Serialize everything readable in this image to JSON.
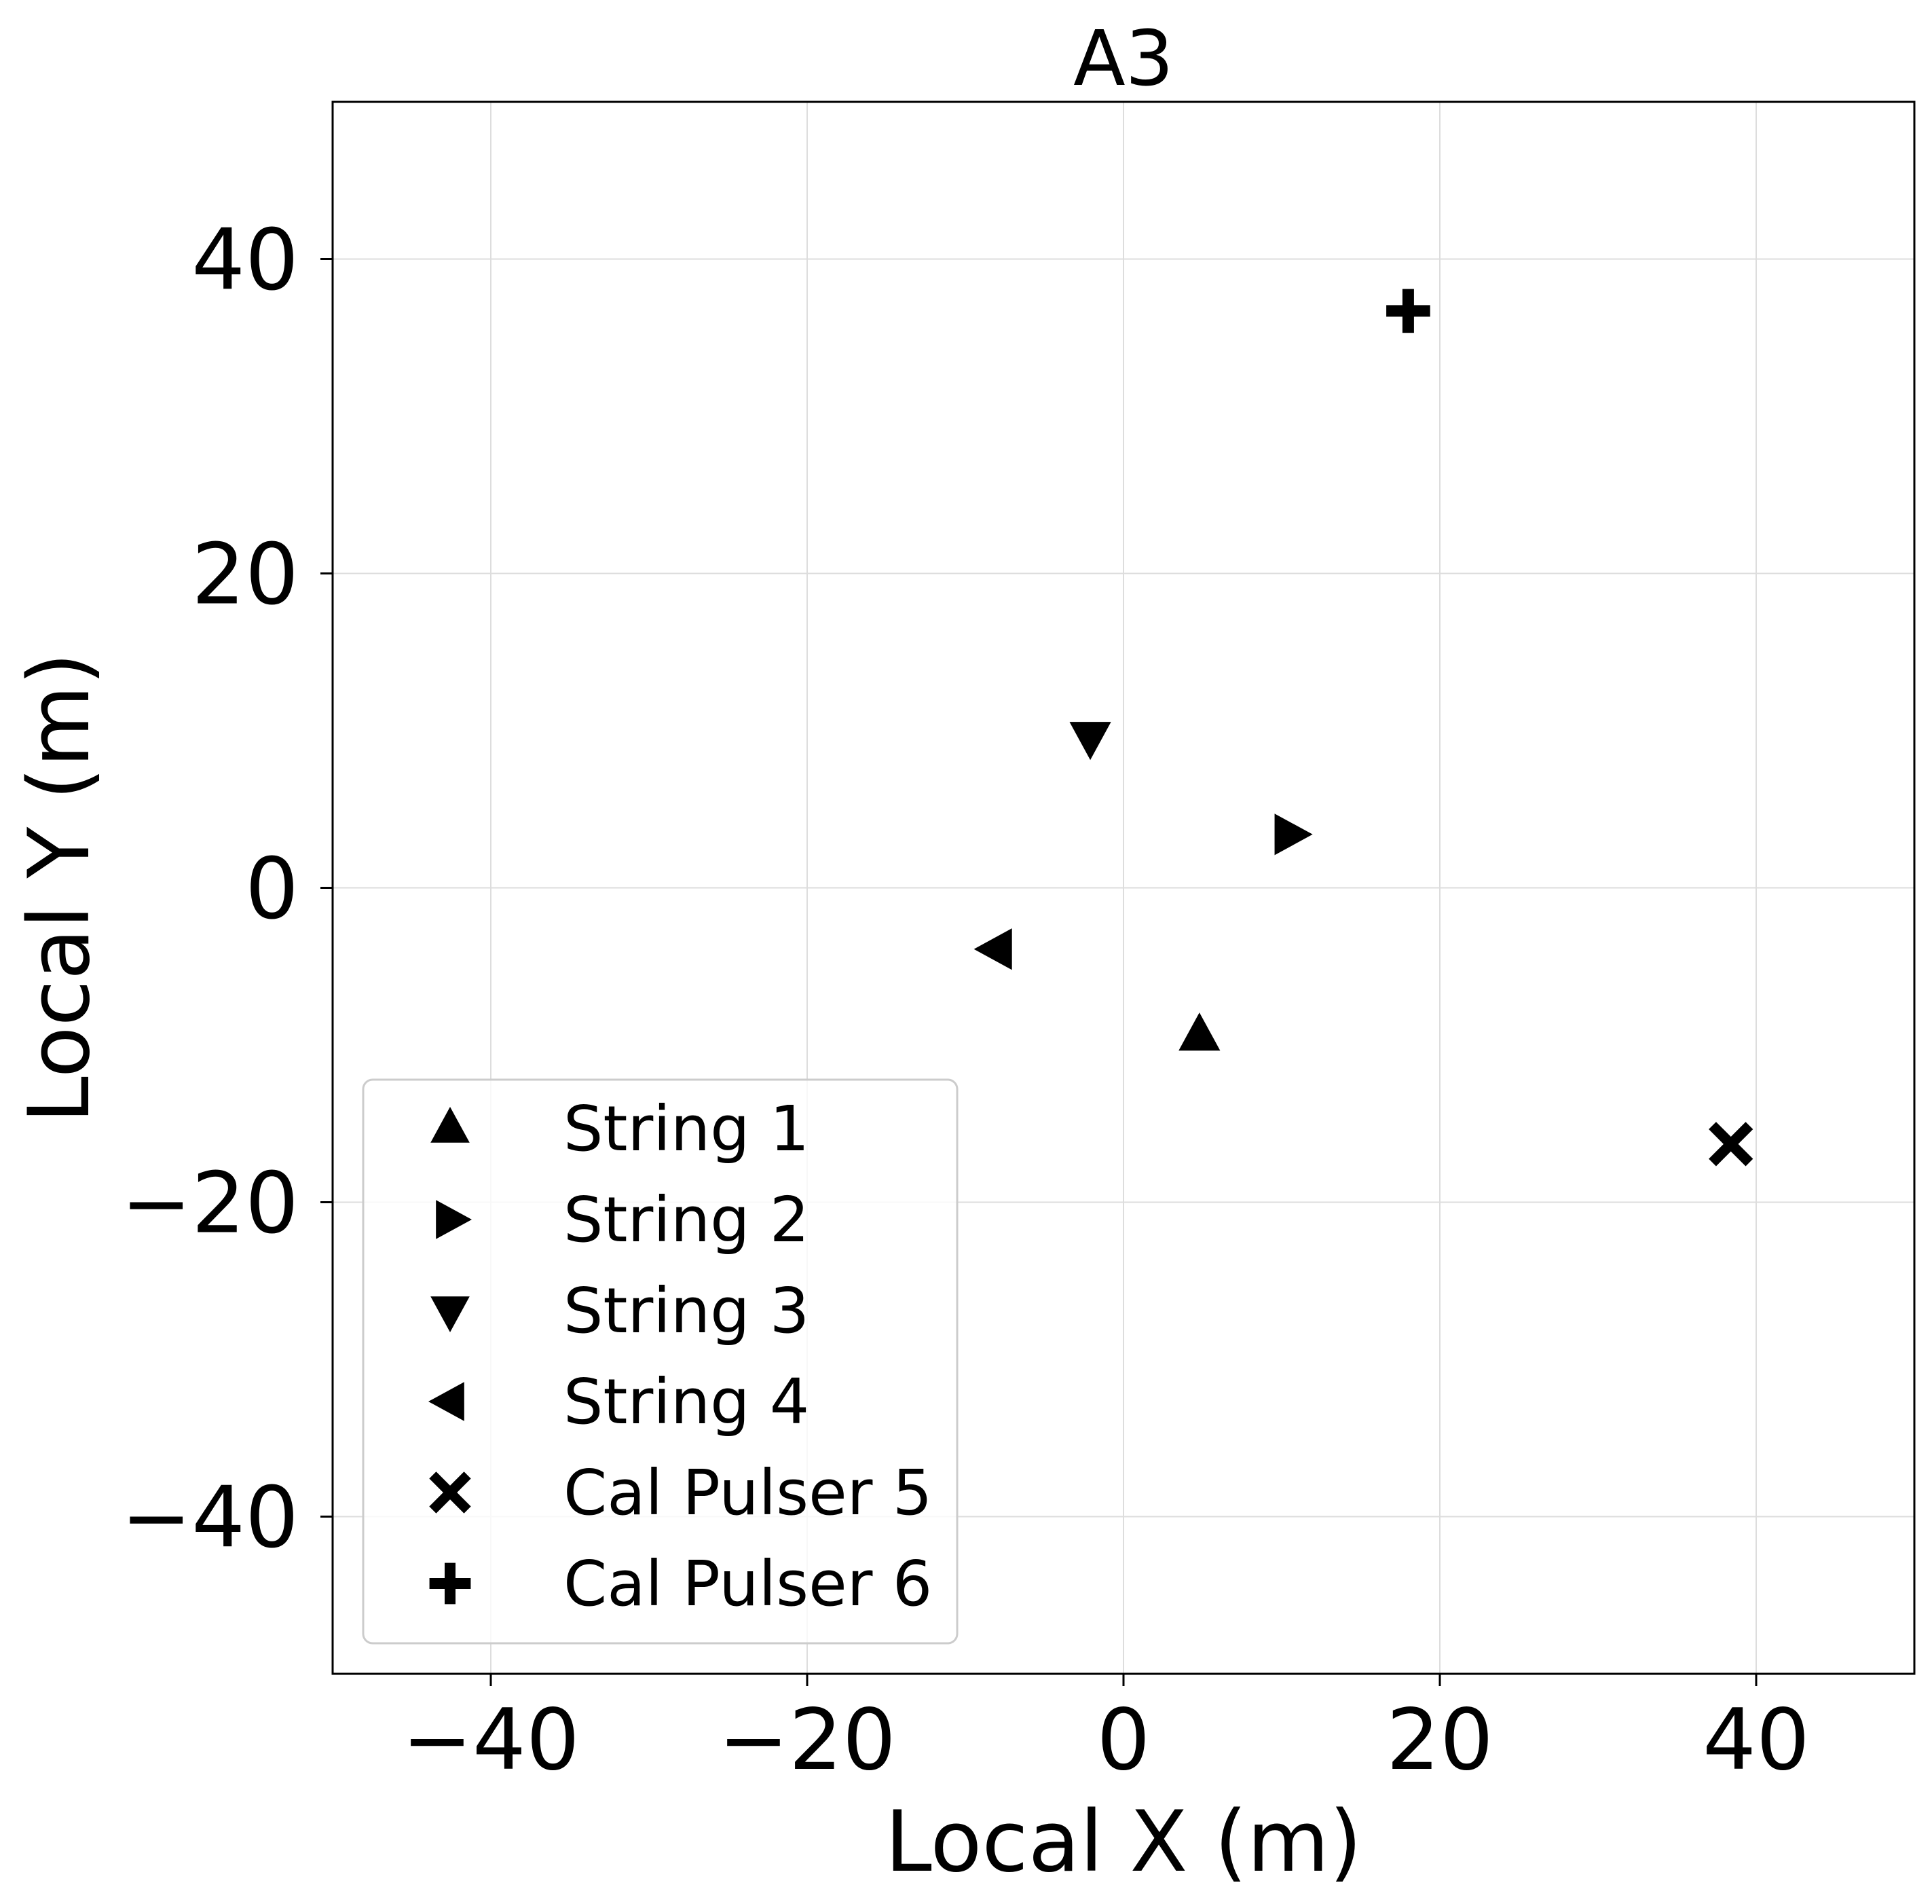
{
  "chart_data": {
    "type": "scatter",
    "title": "A3",
    "xlabel": "Local X (m)",
    "ylabel": "Local Y (m)",
    "xlim": [
      -50,
      50
    ],
    "ylim": [
      -50,
      50
    ],
    "xticks": [
      -40,
      -20,
      0,
      20,
      40
    ],
    "yticks": [
      -40,
      -20,
      0,
      20,
      40
    ],
    "xtick_labels": [
      "−40",
      "−20",
      "0",
      "20",
      "40"
    ],
    "ytick_labels": [
      "−40",
      "−20",
      "0",
      "20",
      "40"
    ],
    "grid": true,
    "legend_position": "lower-left",
    "series": [
      {
        "name": "String 1",
        "marker": "triangle-up",
        "x": 4.8,
        "y": -9.4
      },
      {
        "name": "String 2",
        "marker": "triangle-right",
        "x": 10.5,
        "y": 3.4
      },
      {
        "name": "String 3",
        "marker": "triangle-down",
        "x": -2.1,
        "y": 9.6
      },
      {
        "name": "String 4",
        "marker": "triangle-left",
        "x": -8.0,
        "y": -3.9
      },
      {
        "name": "Cal Pulser 5",
        "marker": "x-cross",
        "x": 38.4,
        "y": -16.3
      },
      {
        "name": "Cal Pulser 6",
        "marker": "plus",
        "x": 18.0,
        "y": 36.7
      }
    ],
    "marker_color": "#000000",
    "grid_color": "#dddddd"
  }
}
